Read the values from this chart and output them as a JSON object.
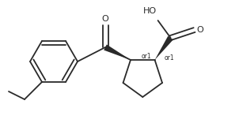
{
  "bg_color": "#ffffff",
  "line_color": "#2a2a2a",
  "lw": 1.3,
  "fs": 7.0,
  "figsize": [
    3.02,
    1.56
  ],
  "dpi": 100,
  "xlim": [
    0,
    302
  ],
  "ylim": [
    0,
    156
  ]
}
